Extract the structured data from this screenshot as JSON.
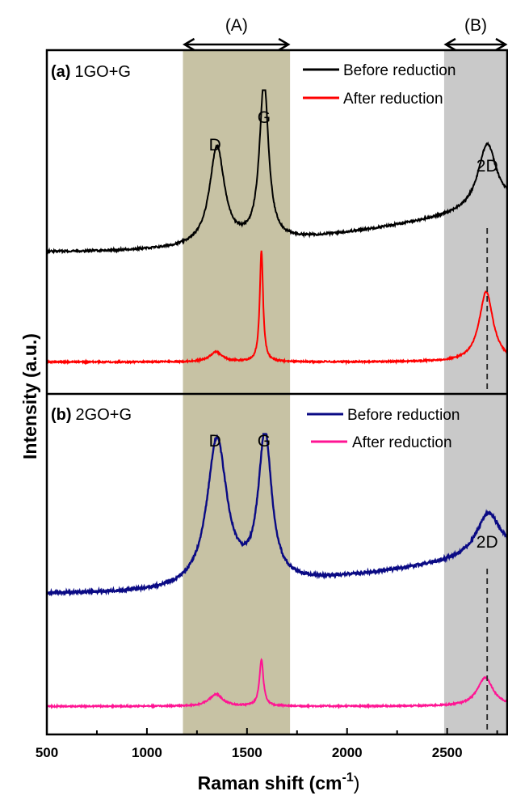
{
  "chart_data": {
    "type": "line",
    "xlabel_main": "Raman shift (cm",
    "xlabel_sup": "-1",
    "xlabel_end": ")",
    "ylabel": "Intensity (a.u.)",
    "xlim": [
      500,
      2800
    ],
    "xticks": [
      500,
      1000,
      1500,
      2000,
      2500
    ],
    "regions": [
      {
        "label": "(A)",
        "x_range": [
          1180,
          1715
        ],
        "color": "#c7c2a4"
      },
      {
        "label": "(B)",
        "x_range": [
          2485,
          2800
        ],
        "color": "#c9c9c9"
      }
    ],
    "reference_line_x": 2700,
    "panels": [
      {
        "label_bold": "(a)",
        "label": "1GO+G",
        "peak_labels": [
          {
            "text": "D",
            "x": 1340
          },
          {
            "text": "G",
            "x": 1585
          },
          {
            "text": "2D",
            "x": 2700
          }
        ],
        "series": [
          {
            "name": "Before reduction",
            "color": "#000000",
            "baseline": [
              0.1,
              0.38
            ],
            "noise": 0.006,
            "peaks": [
              [
                1350,
                0.58,
                45
              ],
              [
                1585,
                0.94,
                27
              ],
              [
                2700,
                0.38,
                55
              ]
            ]
          },
          {
            "name": "After reduction",
            "color": "#ff0000",
            "baseline": [
              0.13,
              0.13
            ],
            "noise": 0.006,
            "peaks": [
              [
                1345,
                0.08,
                38
              ],
              [
                1572,
                0.92,
                10
              ],
              [
                2695,
                0.58,
                42
              ]
            ]
          }
        ]
      },
      {
        "label_bold": "(b)",
        "label": "2GO+G",
        "peak_labels": [
          {
            "text": "D",
            "x": 1340
          },
          {
            "text": "G",
            "x": 1585
          },
          {
            "text": "2D",
            "x": 2700
          }
        ],
        "series": [
          {
            "name": "Before reduction",
            "color": "#0a0a84",
            "baseline": [
              0.1,
              0.35
            ],
            "noise": 0.008,
            "peaks": [
              [
                1350,
                0.88,
                60
              ],
              [
                1590,
                0.88,
                40
              ],
              [
                2705,
                0.25,
                70
              ]
            ]
          },
          {
            "name": "After reduction",
            "color": "#ff1493",
            "baseline": [
              0.1,
              0.1
            ],
            "noise": 0.006,
            "peaks": [
              [
                1345,
                0.1,
                40
              ],
              [
                1572,
                0.39,
                12
              ],
              [
                2690,
                0.24,
                48
              ]
            ]
          }
        ]
      }
    ]
  }
}
